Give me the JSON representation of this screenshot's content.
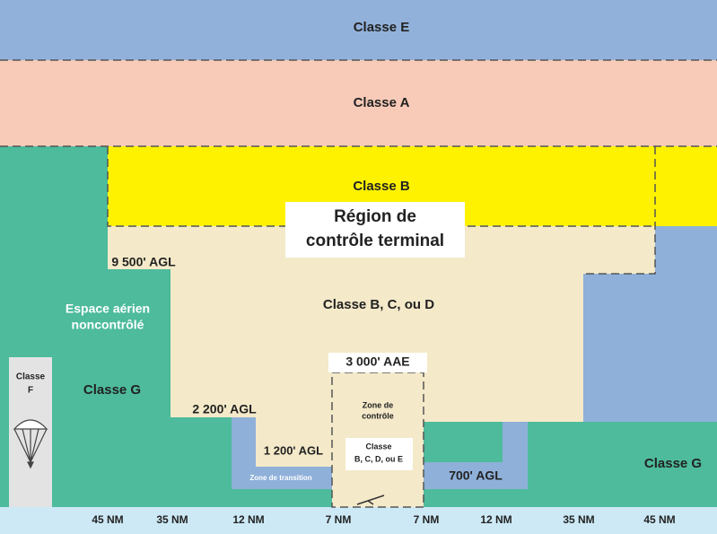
{
  "regions": {
    "class_e": "Classe E",
    "class_a": "Classe A",
    "class_b": "Classe B",
    "terminal": [
      "Région de",
      "contrôle terminal"
    ],
    "class_bcd": "Classe B, C, ou D",
    "uncontrolled": [
      "Espace aérien",
      "noncontrôlé"
    ],
    "class_g_left": "Classe G",
    "class_g_right": "Classe G",
    "class_f": [
      "Classe",
      "F"
    ],
    "control_zone": [
      "Zone de",
      "contrôle"
    ],
    "control_zone_class": [
      "Classe",
      "B, C, D, ou E"
    ],
    "transition_zone": "Zone de transition"
  },
  "altitudes": {
    "agl_9500": "9 500' AGL",
    "agl_2200": "2 200' AGL",
    "agl_1200": "1 200' AGL",
    "agl_700": "700' AGL",
    "aae_3000": "3 000' AAE"
  },
  "distances": [
    "45 NM",
    "35 NM",
    "12 NM",
    "7 NM",
    "7 NM",
    "12 NM",
    "35 NM",
    "45 NM"
  ]
}
